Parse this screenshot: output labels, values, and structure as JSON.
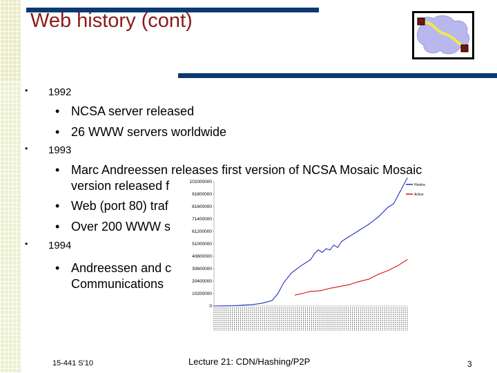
{
  "slide": {
    "title": "Web history (cont)",
    "bullets": [
      {
        "level": 1,
        "text": "1992"
      },
      {
        "level": 2,
        "text": "NCSA server released"
      },
      {
        "level": 2,
        "text": "26 WWW servers worldwide"
      },
      {
        "level": 1,
        "text": "1993"
      },
      {
        "level": 2,
        "text": "Marc Andreessen releases first version of NCSA  Mosaic Mosaic"
      },
      {
        "level": 2,
        "text": "version released f"
      },
      {
        "level": 2,
        "text": "Web (port 80) traf"
      },
      {
        "level": 2,
        "text": "Over 200 WWW s"
      },
      {
        "level": 1,
        "text": "1994"
      },
      {
        "level": 2,
        "text": "Andreessen and c"
      },
      {
        "level": 2,
        "text": "Communications"
      }
    ],
    "bullet_glyph_level1": "•",
    "bullet_glyph_level2": "•",
    "logo_icon": "network-graph-icon"
  },
  "footer": {
    "course": "15-441 S'10",
    "lecture": "Lecture 21: CDN/Hashing/P2P",
    "page": "3"
  },
  "chart_data": {
    "type": "line",
    "title": "",
    "xlabel": "",
    "ylabel": "",
    "y_ticks": [
      "0",
      "10200000",
      "20400000",
      "30600000",
      "40800000",
      "51000000",
      "61200000",
      "71400000",
      "81600000",
      "91800000",
      "102000000"
    ],
    "ylim": [
      0,
      102000000
    ],
    "legend": {
      "placement": "top-right"
    },
    "series": [
      {
        "name": "Hostnames",
        "color": "#1f2fbf",
        "x": [
          0,
          0.05,
          0.1,
          0.15,
          0.2,
          0.25,
          0.3,
          0.33,
          0.36,
          0.4,
          0.45,
          0.5,
          0.52,
          0.54,
          0.56,
          0.58,
          0.6,
          0.62,
          0.64,
          0.66,
          0.7,
          0.75,
          0.8,
          0.85,
          0.9,
          0.93,
          0.96,
          1.0
        ],
        "values": [
          0,
          100000,
          300000,
          700000,
          1200000,
          2300000,
          4500000,
          10000000,
          19000000,
          27000000,
          33000000,
          38000000,
          43000000,
          46000000,
          44000000,
          47000000,
          46000000,
          50000000,
          48000000,
          53000000,
          57000000,
          62000000,
          67000000,
          73000000,
          81000000,
          84000000,
          93000000,
          105000000
        ]
      },
      {
        "name": "Active",
        "color": "#d01515",
        "x": [
          0.42,
          0.45,
          0.5,
          0.55,
          0.6,
          0.65,
          0.7,
          0.75,
          0.8,
          0.85,
          0.9,
          0.95,
          1.0
        ],
        "values": [
          9000000,
          10000000,
          12000000,
          12500000,
          14500000,
          16000000,
          17500000,
          20000000,
          22000000,
          26000000,
          29000000,
          33000000,
          38000000
        ]
      }
    ]
  }
}
